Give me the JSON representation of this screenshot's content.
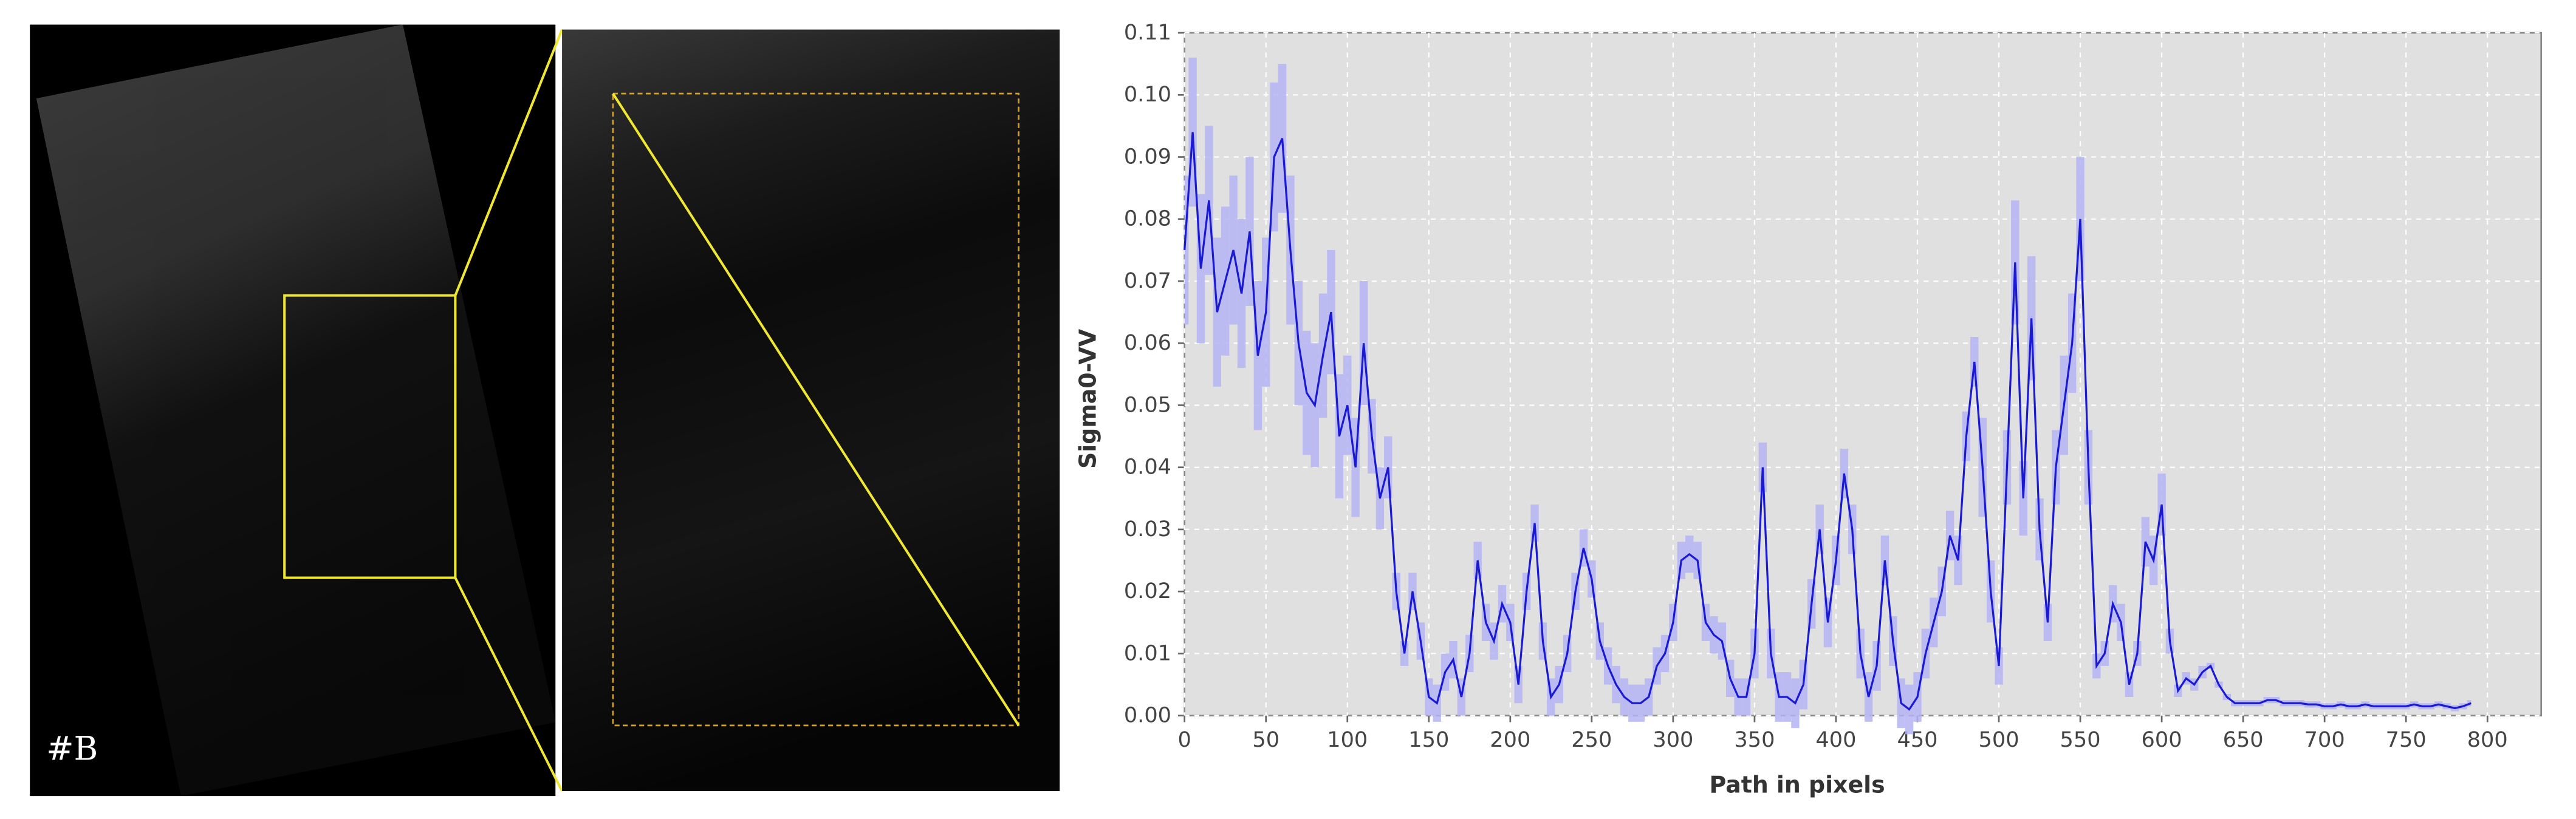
{
  "image_label": "#B",
  "chart_data": {
    "type": "line",
    "x_label": "Path in pixels",
    "y_label": "Sigma0-VV",
    "xlim": [
      0,
      833
    ],
    "ylim": [
      0,
      0.11
    ],
    "xticks": [
      0,
      50,
      100,
      150,
      200,
      250,
      300,
      350,
      400,
      450,
      500,
      550,
      600,
      650,
      700,
      750,
      800
    ],
    "yticks": [
      {
        "value": 0,
        "label": "0.00"
      },
      0.01,
      0.02,
      0.03,
      0.04,
      0.05,
      0.06,
      0.07,
      0.08,
      0.09,
      {
        "value": 0.1,
        "label": "0.10"
      },
      0.11
    ],
    "grid": true,
    "background": "#e0e0e0",
    "x": [
      0,
      5,
      10,
      15,
      20,
      25,
      30,
      35,
      40,
      45,
      50,
      55,
      60,
      65,
      70,
      75,
      80,
      85,
      90,
      95,
      100,
      105,
      110,
      115,
      120,
      125,
      130,
      135,
      140,
      145,
      150,
      155,
      160,
      165,
      170,
      175,
      180,
      185,
      190,
      195,
      200,
      205,
      210,
      215,
      220,
      225,
      230,
      235,
      240,
      245,
      250,
      255,
      260,
      265,
      270,
      275,
      280,
      285,
      290,
      295,
      300,
      305,
      310,
      315,
      320,
      325,
      330,
      335,
      340,
      345,
      350,
      355,
      360,
      365,
      370,
      375,
      380,
      385,
      390,
      395,
      400,
      405,
      410,
      415,
      420,
      425,
      430,
      435,
      440,
      445,
      450,
      455,
      460,
      465,
      470,
      475,
      480,
      485,
      490,
      495,
      500,
      505,
      510,
      515,
      520,
      525,
      530,
      535,
      540,
      545,
      550,
      555,
      560,
      565,
      570,
      575,
      580,
      585,
      590,
      595,
      600,
      605,
      610,
      615,
      620,
      625,
      630,
      635,
      640,
      645,
      650,
      655,
      660,
      665,
      670,
      675,
      680,
      685,
      690,
      695,
      700,
      705,
      710,
      715,
      720,
      725,
      730,
      735,
      740,
      745,
      750,
      755,
      760,
      765,
      770,
      775,
      780,
      785,
      790
    ],
    "series": [
      {
        "color": "#1a1ad4",
        "band_color": "#b4b4f4",
        "values": [
          0.075,
          0.094,
          0.072,
          0.083,
          0.065,
          0.07,
          0.075,
          0.068,
          0.078,
          0.058,
          0.065,
          0.09,
          0.093,
          0.075,
          0.06,
          0.052,
          0.05,
          0.058,
          0.065,
          0.045,
          0.05,
          0.04,
          0.06,
          0.045,
          0.035,
          0.04,
          0.02,
          0.01,
          0.02,
          0.012,
          0.003,
          0.002,
          0.007,
          0.009,
          0.003,
          0.01,
          0.025,
          0.015,
          0.012,
          0.018,
          0.015,
          0.005,
          0.02,
          0.031,
          0.012,
          0.003,
          0.005,
          0.01,
          0.02,
          0.027,
          0.022,
          0.012,
          0.008,
          0.005,
          0.003,
          0.002,
          0.002,
          0.003,
          0.008,
          0.01,
          0.015,
          0.025,
          0.026,
          0.025,
          0.015,
          0.013,
          0.012,
          0.006,
          0.003,
          0.003,
          0.01,
          0.04,
          0.01,
          0.003,
          0.003,
          0.002,
          0.005,
          0.018,
          0.03,
          0.015,
          0.025,
          0.039,
          0.03,
          0.01,
          0.003,
          0.008,
          0.025,
          0.012,
          0.002,
          0.001,
          0.003,
          0.01,
          0.015,
          0.02,
          0.029,
          0.025,
          0.045,
          0.057,
          0.04,
          0.02,
          0.008,
          0.04,
          0.073,
          0.035,
          0.064,
          0.03,
          0.015,
          0.04,
          0.05,
          0.06,
          0.08,
          0.04,
          0.008,
          0.01,
          0.018,
          0.015,
          0.005,
          0.01,
          0.028,
          0.025,
          0.034,
          0.012,
          0.004,
          0.006,
          0.005,
          0.007,
          0.008,
          0.005,
          0.003,
          0.002,
          0.002,
          0.002,
          0.002,
          0.0025,
          0.0025,
          0.002,
          0.002,
          0.002,
          0.0018,
          0.0018,
          0.0015,
          0.0015,
          0.0018,
          0.0015,
          0.0015,
          0.0018,
          0.0015,
          0.0015,
          0.0015,
          0.0015,
          0.0015,
          0.0018,
          0.0015,
          0.0015,
          0.0018,
          0.0015,
          0.0012,
          0.0015,
          0.002
        ],
        "errors": [
          0.012,
          0.012,
          0.012,
          0.012,
          0.012,
          0.012,
          0.012,
          0.012,
          0.012,
          0.012,
          0.012,
          0.012,
          0.012,
          0.012,
          0.01,
          0.01,
          0.01,
          0.01,
          0.01,
          0.01,
          0.008,
          0.008,
          0.01,
          0.006,
          0.005,
          0.005,
          0.003,
          0.002,
          0.003,
          0.003,
          0.003,
          0.003,
          0.003,
          0.003,
          0.003,
          0.003,
          0.003,
          0.003,
          0.003,
          0.003,
          0.003,
          0.003,
          0.003,
          0.003,
          0.003,
          0.003,
          0.003,
          0.003,
          0.003,
          0.003,
          0.003,
          0.003,
          0.003,
          0.003,
          0.003,
          0.003,
          0.003,
          0.003,
          0.003,
          0.003,
          0.003,
          0.003,
          0.003,
          0.003,
          0.003,
          0.003,
          0.003,
          0.003,
          0.003,
          0.003,
          0.004,
          0.004,
          0.004,
          0.004,
          0.004,
          0.004,
          0.004,
          0.004,
          0.004,
          0.004,
          0.004,
          0.004,
          0.004,
          0.004,
          0.004,
          0.004,
          0.004,
          0.004,
          0.004,
          0.004,
          0.004,
          0.004,
          0.004,
          0.004,
          0.004,
          0.004,
          0.004,
          0.004,
          0.008,
          0.005,
          0.003,
          0.006,
          0.01,
          0.006,
          0.01,
          0.005,
          0.003,
          0.006,
          0.008,
          0.008,
          0.01,
          0.006,
          0.002,
          0.002,
          0.003,
          0.003,
          0.002,
          0.002,
          0.004,
          0.004,
          0.005,
          0.002,
          0.001,
          0.001,
          0.001,
          0.001,
          0.0005,
          0.0005,
          0.0005,
          0.0005,
          0.0005,
          0.0005,
          0.0005,
          0.0005,
          0.0005,
          0.0005,
          0.0005,
          0.0005,
          0.0005,
          0.0005,
          0.0005,
          0.0005,
          0.0005,
          0.0005,
          0.0005,
          0.0005,
          0.0005,
          0.0005,
          0.0005,
          0.0005,
          0.0005,
          0.0005,
          0.0005,
          0.0005,
          0.0005,
          0.0005,
          0.0005,
          0.0005,
          0.0005
        ]
      }
    ]
  }
}
